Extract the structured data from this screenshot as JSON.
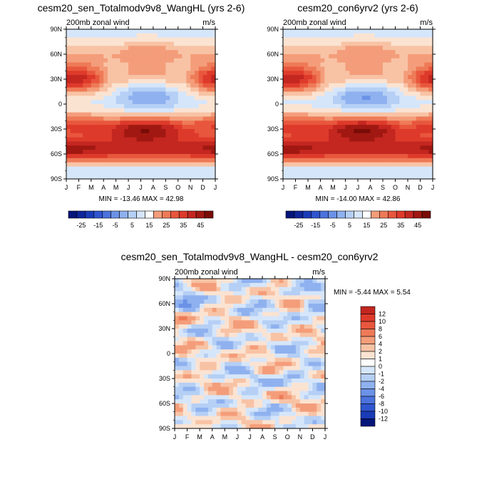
{
  "months": [
    "J",
    "F",
    "M",
    "A",
    "M",
    "J",
    "J",
    "A",
    "S",
    "O",
    "N",
    "D",
    "J"
  ],
  "lat_labels": [
    "90N",
    "60N",
    "30N",
    "0",
    "30S",
    "60S",
    "90S"
  ],
  "colors": {
    "pos": [
      "#fbe3d2",
      "#f8c3a5",
      "#f49d7a",
      "#ee7a57",
      "#e8573d",
      "#de3a2b",
      "#c42620",
      "#a11812",
      "#7a0c08"
    ],
    "neg": [
      "#d6e6fa",
      "#b5cff5",
      "#8fb1ef",
      "#6b92e7",
      "#4b72dd",
      "#2f55cf",
      "#1a3bb8",
      "#0e259b",
      "#06157a"
    ]
  },
  "chart_data": [
    {
      "id": "panel1",
      "type": "heatmap",
      "title": "cesm20_sen_Totalmodv9v8_WangHL (yrs 2-6)",
      "subtitle_left": "200mb zonal wind",
      "subtitle_right": "m/s",
      "stats": "MIN = -13.46 MAX =  42.98",
      "x": "month (Jan-Jan)",
      "y": "latitude (90N-90S)",
      "min": -13.46,
      "max": 42.98,
      "colorbar": {
        "levels": [
          -30,
          -25,
          -20,
          -15,
          -10,
          -5,
          0,
          5,
          10,
          15,
          20,
          25,
          30,
          35,
          40,
          45
        ],
        "labels": [
          "-25",
          "-15",
          "-5",
          "5",
          "15",
          "25",
          "35",
          "45"
        ]
      }
    },
    {
      "id": "panel2",
      "type": "heatmap",
      "title": "cesm20_con6yrv2 (yrs 2-6)",
      "subtitle_left": "200mb zonal wind",
      "subtitle_right": "m/s",
      "stats": "MIN = -14.00 MAX =  42.86",
      "x": "month (Jan-Jan)",
      "y": "latitude (90N-90S)",
      "min": -14.0,
      "max": 42.86,
      "colorbar": {
        "levels": [
          -30,
          -25,
          -20,
          -15,
          -10,
          -5,
          0,
          5,
          10,
          15,
          20,
          25,
          30,
          35,
          40,
          45
        ],
        "labels": [
          "-25",
          "-15",
          "-5",
          "5",
          "15",
          "25",
          "35",
          "45"
        ]
      }
    },
    {
      "id": "panel3",
      "type": "heatmap",
      "title": "cesm20_sen_Totalmodv9v8_WangHL - cesm20_con6yrv2",
      "subtitle_left": "200mb zonal wind",
      "subtitle_right": "m/s",
      "stats": "MIN =  -5.44 MAX =   5.54",
      "x": "month (Jan-Jan)",
      "y": "latitude (90N-90S)",
      "min": -5.44,
      "max": 5.54,
      "colorbar": {
        "levels": [
          -12,
          -10,
          -8,
          -6,
          -4,
          -2,
          -1,
          0,
          1,
          2,
          4,
          6,
          8,
          10,
          12
        ],
        "labels": [
          "12",
          "10",
          "8",
          "6",
          "4",
          "2",
          "1",
          "0",
          "-1",
          "-2",
          "-4",
          "-6",
          "-8",
          "-10",
          "-12"
        ]
      }
    }
  ]
}
